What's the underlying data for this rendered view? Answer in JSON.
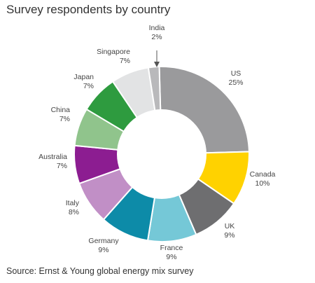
{
  "chart_data": {
    "type": "pie",
    "title": "Survey respondents by country",
    "source": "Source: Ernst & Young global energy mix survey",
    "slices": [
      {
        "name": "US",
        "value": 25,
        "label": "25%",
        "color": "#9a9a9c"
      },
      {
        "name": "Canada",
        "value": 10,
        "label": "10%",
        "color": "#ffd200"
      },
      {
        "name": "UK",
        "value": 9,
        "label": "9%",
        "color": "#6e6e70"
      },
      {
        "name": "France",
        "value": 9,
        "label": "9%",
        "color": "#75c8d7"
      },
      {
        "name": "Germany",
        "value": 9,
        "label": "9%",
        "color": "#0d8ba8"
      },
      {
        "name": "Italy",
        "value": 8,
        "label": "8%",
        "color": "#c18fc6"
      },
      {
        "name": "Australia",
        "value": 7,
        "label": "7%",
        "color": "#8c1d91"
      },
      {
        "name": "China",
        "value": 7,
        "label": "7%",
        "color": "#90c48c"
      },
      {
        "name": "Japan",
        "value": 7,
        "label": "7%",
        "color": "#2e9b3f"
      },
      {
        "name": "Singapore",
        "value": 7,
        "label": "7%",
        "color": "#e2e3e4"
      },
      {
        "name": "India",
        "value": 2,
        "label": "2%",
        "color": "#b9b9bb"
      }
    ]
  }
}
